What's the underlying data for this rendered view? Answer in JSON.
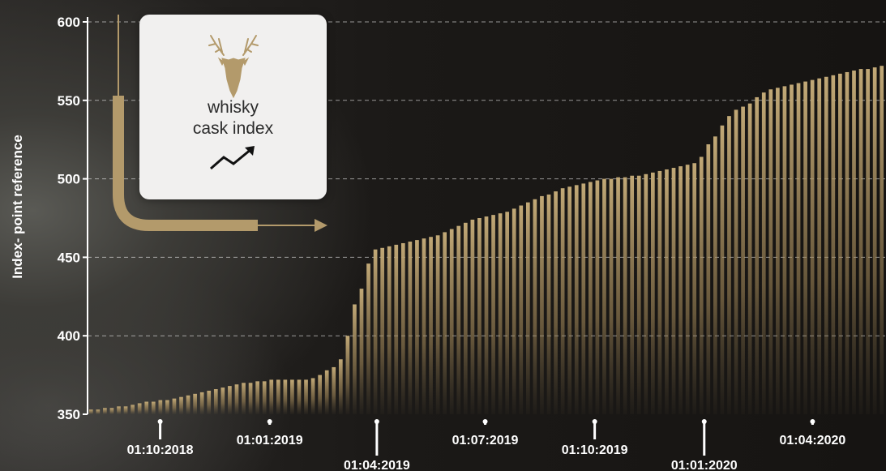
{
  "brand": {
    "line1": "whisky",
    "line2": "cask index",
    "logo_icon": "stag-head-icon",
    "trend_icon": "trend-up-arrow-icon",
    "accent": "#b39a6b"
  },
  "chart_data": {
    "type": "bar",
    "ylabel": "Index- point reference",
    "ylim": [
      350,
      600
    ],
    "yticks": [
      350,
      400,
      450,
      500,
      550,
      600
    ],
    "grid": true,
    "bar_color": "#b39a6b",
    "x_start": "2018-08-01",
    "x_end": "2020-06-01",
    "xtick_labels": [
      {
        "date": "2018-10-01",
        "label": "01:10:2018"
      },
      {
        "date": "2019-01-01",
        "label": "01:01:2019"
      },
      {
        "date": "2019-04-01",
        "label": "01:04:2019"
      },
      {
        "date": "2019-07-01",
        "label": "01:07:2019"
      },
      {
        "date": "2019-10-01",
        "label": "01:10:2019"
      },
      {
        "date": "2020-01-01",
        "label": "01:01:2020"
      },
      {
        "date": "2020-04-01",
        "label": "01:04:2020"
      }
    ],
    "values": [
      353,
      353,
      354,
      354,
      355,
      355,
      356,
      357,
      358,
      358,
      359,
      359,
      360,
      361,
      362,
      363,
      364,
      365,
      366,
      367,
      368,
      369,
      370,
      370,
      371,
      371,
      372,
      372,
      372,
      372,
      372,
      372,
      373,
      375,
      378,
      380,
      385,
      400,
      420,
      430,
      446,
      455,
      456,
      457,
      458,
      459,
      460,
      461,
      462,
      463,
      464,
      466,
      468,
      470,
      472,
      474,
      475,
      476,
      477,
      478,
      479,
      481,
      483,
      485,
      487,
      489,
      490,
      492,
      494,
      495,
      496,
      497,
      498,
      499,
      500,
      500,
      501,
      501,
      502,
      502,
      503,
      504,
      505,
      506,
      507,
      508,
      509,
      510,
      514,
      522,
      527,
      534,
      540,
      544,
      546,
      548,
      552,
      555,
      557,
      558,
      559,
      560,
      561,
      562,
      563,
      564,
      565,
      566,
      567,
      568,
      569,
      570,
      570,
      571,
      572
    ]
  }
}
